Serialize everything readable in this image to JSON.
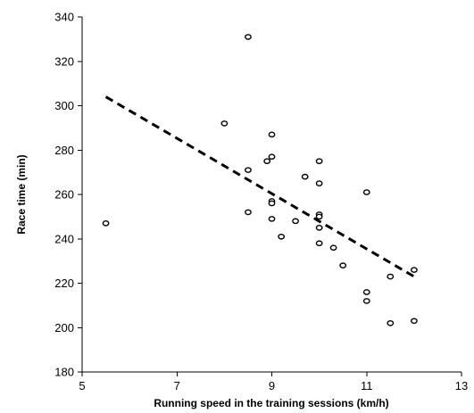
{
  "chart_data": {
    "type": "scatter",
    "xlabel": "Running speed in the training sessions (km/h)",
    "ylabel": "Race time (min)",
    "xlim": [
      5,
      13
    ],
    "ylim": [
      180,
      340
    ],
    "xticks": [
      5,
      7,
      9,
      11,
      13
    ],
    "yticks": [
      180,
      200,
      220,
      240,
      260,
      280,
      300,
      320,
      340
    ],
    "grid": false,
    "legend": "none",
    "points": [
      {
        "x": 5.5,
        "y": 247
      },
      {
        "x": 8.0,
        "y": 292
      },
      {
        "x": 8.5,
        "y": 331
      },
      {
        "x": 8.5,
        "y": 271
      },
      {
        "x": 8.5,
        "y": 252
      },
      {
        "x": 8.9,
        "y": 275
      },
      {
        "x": 9.0,
        "y": 287
      },
      {
        "x": 9.0,
        "y": 277
      },
      {
        "x": 9.0,
        "y": 257
      },
      {
        "x": 9.0,
        "y": 256
      },
      {
        "x": 9.0,
        "y": 249
      },
      {
        "x": 9.2,
        "y": 241
      },
      {
        "x": 9.5,
        "y": 248
      },
      {
        "x": 9.7,
        "y": 268
      },
      {
        "x": 10.0,
        "y": 275
      },
      {
        "x": 10.0,
        "y": 265
      },
      {
        "x": 10.0,
        "y": 251
      },
      {
        "x": 10.0,
        "y": 250
      },
      {
        "x": 10.0,
        "y": 245
      },
      {
        "x": 10.0,
        "y": 238
      },
      {
        "x": 10.3,
        "y": 236
      },
      {
        "x": 10.5,
        "y": 228
      },
      {
        "x": 11.0,
        "y": 261
      },
      {
        "x": 11.0,
        "y": 216
      },
      {
        "x": 11.0,
        "y": 212
      },
      {
        "x": 11.5,
        "y": 223
      },
      {
        "x": 11.5,
        "y": 202
      },
      {
        "x": 12.0,
        "y": 226
      },
      {
        "x": 12.0,
        "y": 203
      }
    ],
    "trendline": {
      "style": "dashed",
      "x": [
        5.5,
        12.0
      ],
      "y": [
        304,
        223
      ]
    }
  }
}
